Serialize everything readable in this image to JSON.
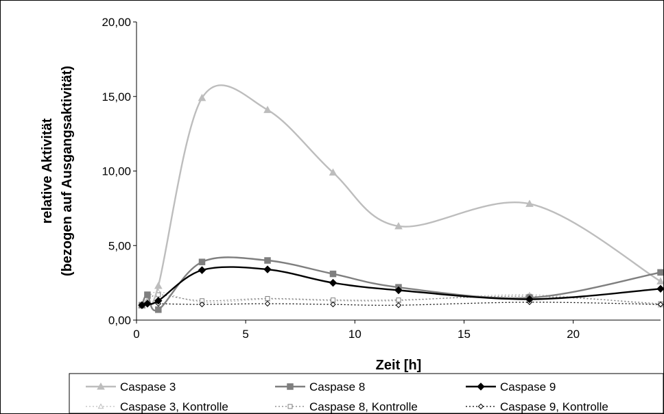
{
  "chart_data": {
    "type": "line",
    "title": "",
    "xlabel": "Zeit [h]",
    "ylabel_line1": "relative Aktivität",
    "ylabel_line2": "(bezogen auf Ausgangsaktivität)",
    "xlim": [
      0,
      24
    ],
    "ylim": [
      0,
      20
    ],
    "x_ticks": [
      "0",
      "5",
      "10",
      "15",
      "20"
    ],
    "y_ticks": [
      "0,00",
      "5,00",
      "10,00",
      "15,00",
      "20,00"
    ],
    "grid": false,
    "legend_position": "bottom",
    "series": [
      {
        "name": "Caspase 3",
        "color": "#bdbdbd",
        "marker": "triangle",
        "dash": "solid",
        "filled": true,
        "x": [
          0.25,
          0.5,
          1,
          3,
          6,
          9,
          12,
          18,
          24
        ],
        "y": [
          1.0,
          1.3,
          2.3,
          14.9,
          14.1,
          9.9,
          6.3,
          7.8,
          2.6
        ]
      },
      {
        "name": "Caspase 8",
        "color": "#7f7f7f",
        "marker": "square",
        "dash": "solid",
        "filled": true,
        "x": [
          0.25,
          0.5,
          1,
          3,
          6,
          9,
          12,
          18,
          24
        ],
        "y": [
          1.0,
          1.7,
          0.7,
          3.9,
          4.0,
          3.1,
          2.2,
          1.5,
          3.2
        ]
      },
      {
        "name": "Caspase 9",
        "color": "#000000",
        "marker": "diamond",
        "dash": "solid",
        "filled": true,
        "x": [
          0.25,
          0.5,
          1,
          3,
          6,
          9,
          12,
          18,
          24
        ],
        "y": [
          1.0,
          1.1,
          1.3,
          3.35,
          3.4,
          2.5,
          2.0,
          1.4,
          2.1
        ]
      },
      {
        "name": "Caspase 3, Kontrolle",
        "color": "#bdbdbd",
        "marker": "triangle",
        "dash": "dotted",
        "filled": false,
        "x": [
          0.25,
          0.5,
          1,
          3,
          6,
          9,
          12,
          18,
          24
        ],
        "y": [
          1.0,
          1.3,
          1.9,
          1.2,
          1.4,
          1.3,
          1.3,
          1.7,
          1.0
        ]
      },
      {
        "name": "Caspase 8, Kontrolle",
        "color": "#7f7f7f",
        "marker": "square",
        "dash": "dotted",
        "filled": false,
        "x": [
          0.25,
          0.5,
          1,
          3,
          6,
          9,
          12,
          18,
          24
        ],
        "y": [
          1.0,
          1.2,
          1.7,
          1.3,
          1.45,
          1.35,
          1.35,
          1.6,
          1.1
        ]
      },
      {
        "name": "Caspase 9, Kontrolle",
        "color": "#000000",
        "marker": "diamond",
        "dash": "dotted",
        "filled": false,
        "x": [
          0.25,
          0.5,
          1,
          3,
          6,
          9,
          12,
          18,
          24
        ],
        "y": [
          1.0,
          1.1,
          1.1,
          1.05,
          1.1,
          1.05,
          1.0,
          1.2,
          1.05
        ]
      }
    ]
  }
}
